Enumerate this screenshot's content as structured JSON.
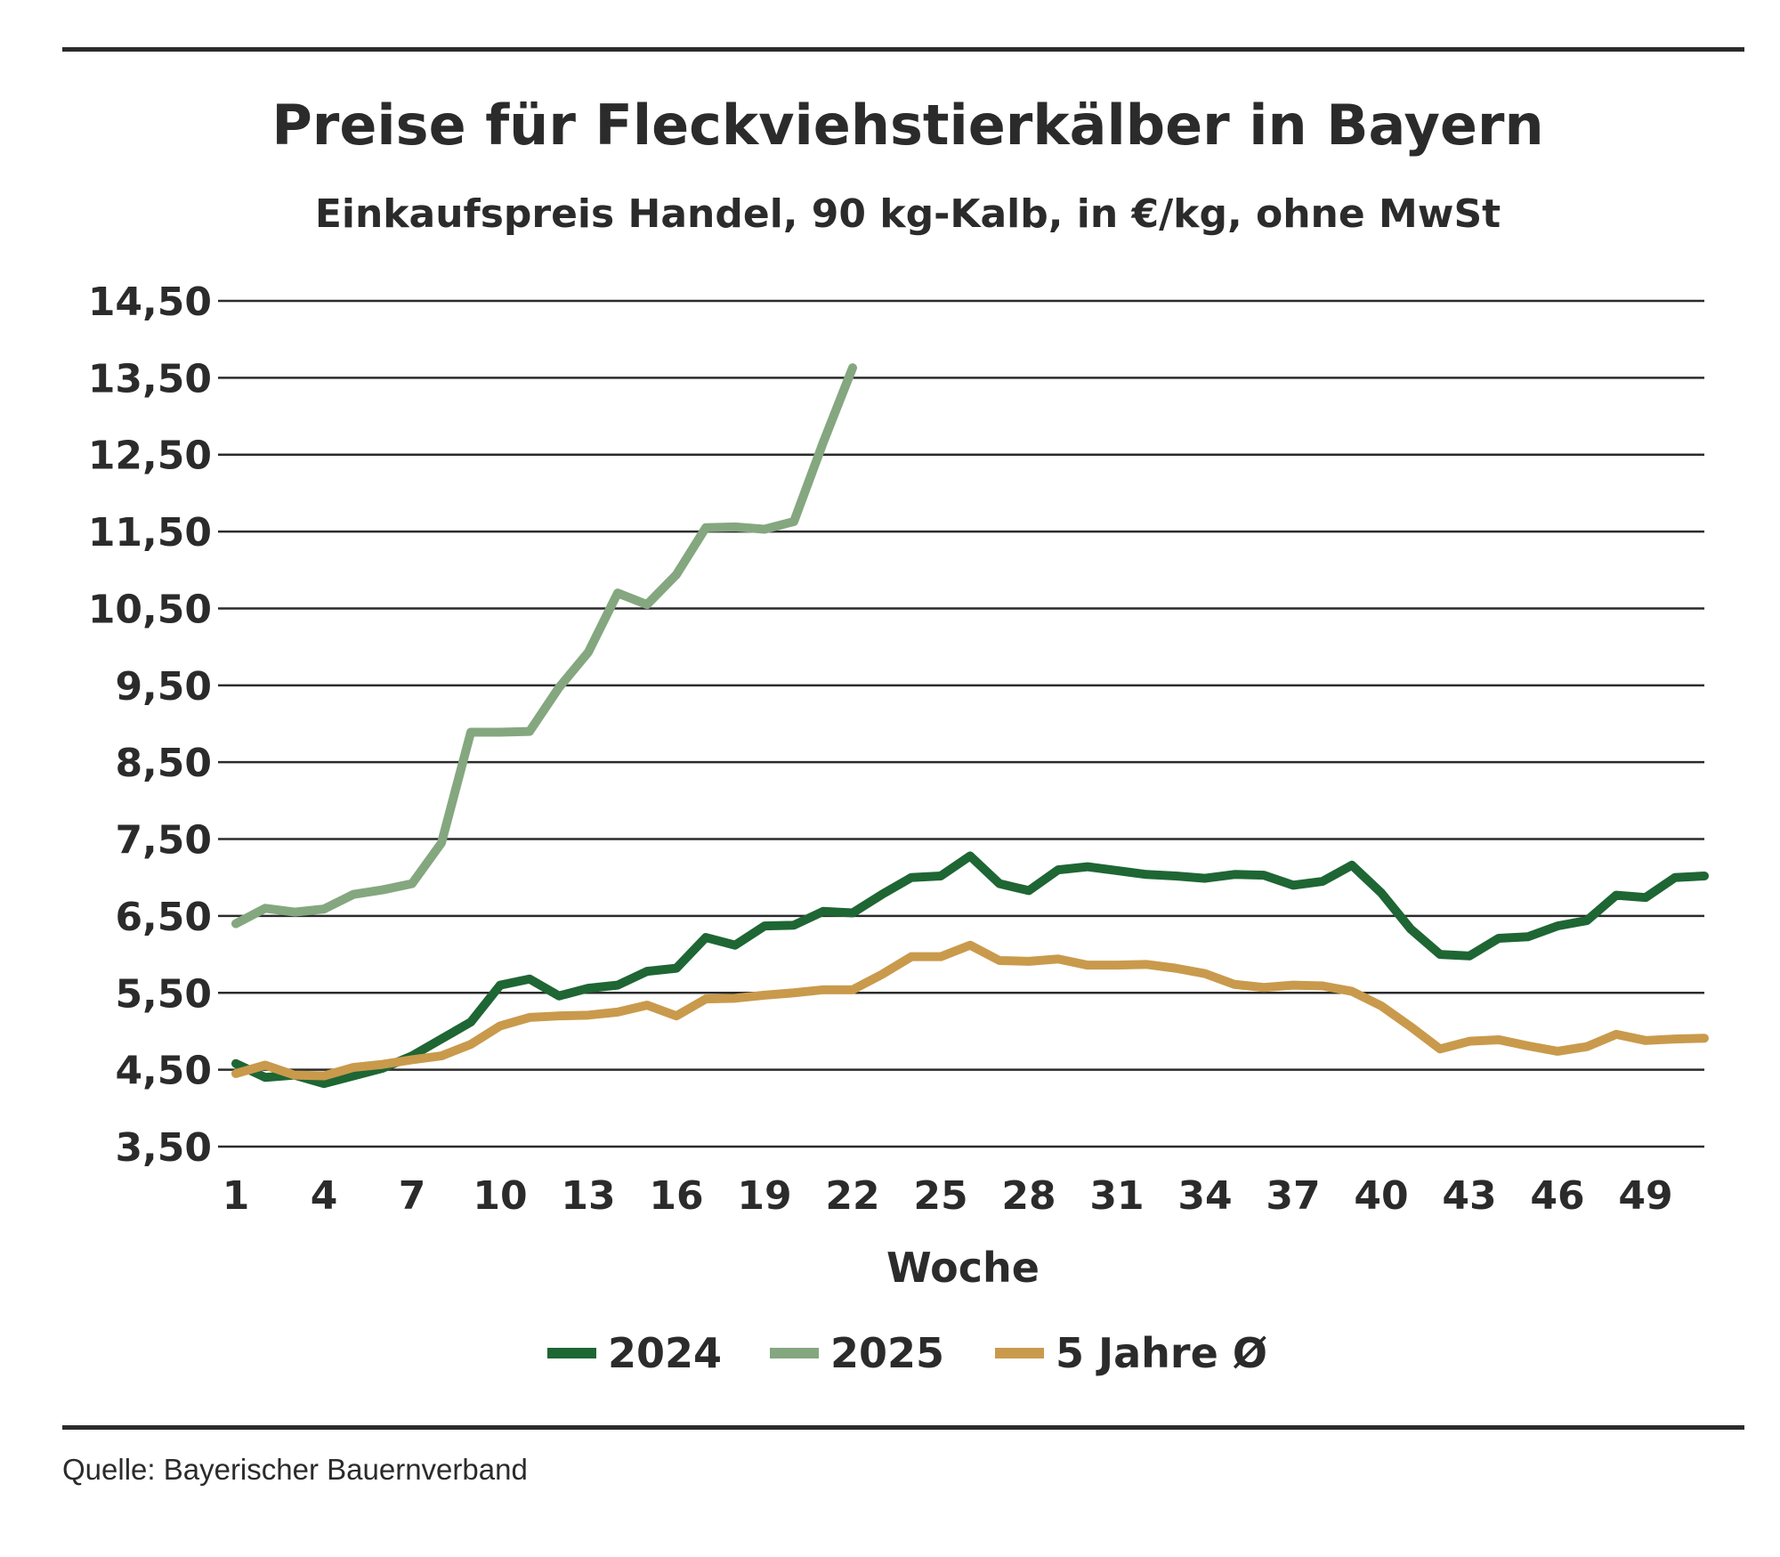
{
  "chart_data": {
    "type": "line",
    "title": "Preise für Fleckviehstierkälber in Bayern",
    "subtitle": "Einkaufspreis Handel, 90 kg-Kalb, in €/kg, ohne MwSt",
    "xlabel": "Woche",
    "ylabel": "",
    "xlim": [
      1,
      51
    ],
    "ylim": [
      3.5,
      14.5
    ],
    "x_ticks": [
      "1",
      "4",
      "7",
      "10",
      "13",
      "16",
      "19",
      "22",
      "25",
      "28",
      "31",
      "34",
      "37",
      "40",
      "43",
      "46",
      "49"
    ],
    "y_ticks": [
      "14,50",
      "13,50",
      "12,50",
      "11,50",
      "10,50",
      "9,50",
      "8,50",
      "7,50",
      "6,50",
      "5,50",
      "4,50",
      "3,50"
    ],
    "y_tick_values": [
      14.5,
      13.5,
      12.5,
      11.5,
      10.5,
      9.5,
      8.5,
      7.5,
      6.5,
      5.5,
      4.5,
      3.5
    ],
    "grid": "horizontal",
    "legend_position": "bottom",
    "series": [
      {
        "name": "2024",
        "color": "#1e6634",
        "x": [
          1,
          2,
          3,
          4,
          5,
          6,
          7,
          8,
          9,
          10,
          11,
          12,
          13,
          14,
          15,
          16,
          17,
          18,
          19,
          20,
          21,
          22,
          23,
          24,
          25,
          26,
          27,
          28,
          29,
          30,
          31,
          32,
          33,
          34,
          35,
          36,
          37,
          38,
          39,
          40,
          41,
          42,
          43,
          44,
          45,
          46,
          47,
          48,
          49,
          50,
          51
        ],
        "values": [
          4.58,
          4.4,
          4.43,
          4.32,
          4.42,
          4.52,
          4.68,
          4.9,
          5.12,
          5.6,
          5.68,
          5.46,
          5.56,
          5.6,
          5.78,
          5.82,
          6.22,
          6.12,
          6.37,
          6.38,
          6.56,
          6.54,
          6.78,
          7.0,
          7.02,
          7.28,
          6.92,
          6.83,
          7.1,
          7.14,
          7.09,
          7.04,
          7.02,
          6.99,
          7.04,
          7.03,
          6.9,
          6.95,
          7.16,
          6.8,
          6.33,
          6.0,
          5.98,
          6.21,
          6.23,
          6.37,
          6.44,
          6.77,
          6.74,
          7.0,
          7.02
        ]
      },
      {
        "name": "2025",
        "color": "#84a77f",
        "x": [
          1,
          2,
          3,
          4,
          5,
          6,
          7,
          8,
          9,
          10,
          11,
          12,
          13,
          14,
          15,
          16,
          17,
          18,
          19,
          20,
          21,
          22
        ],
        "values": [
          6.4,
          6.6,
          6.55,
          6.59,
          6.78,
          6.84,
          6.92,
          7.45,
          8.89,
          8.89,
          8.9,
          9.47,
          9.93,
          10.7,
          10.55,
          10.94,
          11.55,
          11.56,
          11.53,
          11.63,
          12.66,
          13.63
        ]
      },
      {
        "name": "5 Jahre Ø",
        "color": "#c99a4c",
        "x": [
          1,
          2,
          3,
          4,
          5,
          6,
          7,
          8,
          9,
          10,
          11,
          12,
          13,
          14,
          15,
          16,
          17,
          18,
          19,
          20,
          21,
          22,
          23,
          24,
          25,
          26,
          27,
          28,
          29,
          30,
          31,
          32,
          33,
          34,
          35,
          36,
          37,
          38,
          39,
          40,
          41,
          42,
          43,
          44,
          45,
          46,
          47,
          48,
          49,
          50,
          51
        ],
        "values": [
          4.45,
          4.56,
          4.43,
          4.42,
          4.53,
          4.57,
          4.63,
          4.68,
          4.83,
          5.07,
          5.18,
          5.2,
          5.21,
          5.25,
          5.34,
          5.2,
          5.42,
          5.43,
          5.47,
          5.5,
          5.54,
          5.54,
          5.74,
          5.97,
          5.97,
          6.12,
          5.92,
          5.91,
          5.94,
          5.86,
          5.86,
          5.87,
          5.82,
          5.75,
          5.61,
          5.57,
          5.6,
          5.59,
          5.52,
          5.33,
          5.06,
          4.77,
          4.87,
          4.89,
          4.81,
          4.74,
          4.8,
          4.96,
          4.88,
          4.9,
          4.91
        ]
      }
    ]
  },
  "source": "Quelle: Bayerischer Bauernverband"
}
